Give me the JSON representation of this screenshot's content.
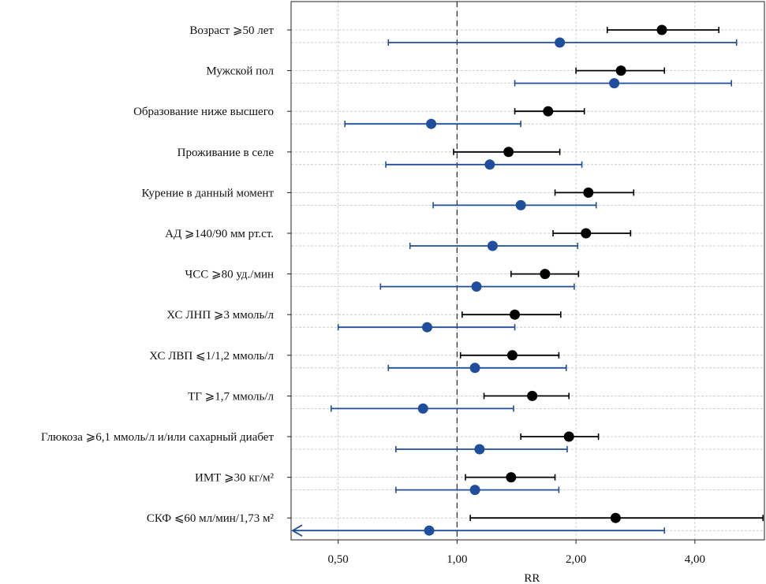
{
  "chart_data": {
    "type": "forest",
    "xlabel": "RR",
    "x_scale": "log",
    "xlim": [
      0.38,
      6.0
    ],
    "reference_line": 1.0,
    "x_ticks": [
      0.5,
      1.0,
      2.0,
      4.0
    ],
    "x_tick_labels": [
      "0,50",
      "1,00",
      "2,00",
      "4,00"
    ],
    "grid": true,
    "colors": {
      "series_black": "#000000",
      "series_blue": "#1f4e9c"
    },
    "rows": [
      {
        "label": "Возраст ⩾50 лет",
        "black": {
          "rr": 3.3,
          "lo": 2.4,
          "hi": 4.6
        },
        "blue": {
          "rr": 1.82,
          "lo": 0.67,
          "hi": 5.1
        }
      },
      {
        "label": "Мужской пол",
        "black": {
          "rr": 2.6,
          "lo": 2.0,
          "hi": 3.35
        },
        "blue": {
          "rr": 2.5,
          "lo": 1.4,
          "hi": 4.95
        }
      },
      {
        "label": "Образование ниже высшего",
        "black": {
          "rr": 1.7,
          "lo": 1.4,
          "hi": 2.1
        },
        "blue": {
          "rr": 0.86,
          "lo": 0.52,
          "hi": 1.45
        }
      },
      {
        "label": "Проживание в селе",
        "black": {
          "rr": 1.35,
          "lo": 0.98,
          "hi": 1.82
        },
        "blue": {
          "rr": 1.21,
          "lo": 0.66,
          "hi": 2.07
        }
      },
      {
        "label": "Курение в данный момент",
        "black": {
          "rr": 2.15,
          "lo": 1.77,
          "hi": 2.8
        },
        "blue": {
          "rr": 1.45,
          "lo": 0.87,
          "hi": 2.25
        }
      },
      {
        "label": "АД ⩾140/90 мм рт.ст.",
        "black": {
          "rr": 2.12,
          "lo": 1.75,
          "hi": 2.75
        },
        "blue": {
          "rr": 1.23,
          "lo": 0.76,
          "hi": 2.02
        }
      },
      {
        "label": "ЧСС ⩾80 уд./мин",
        "black": {
          "rr": 1.67,
          "lo": 1.37,
          "hi": 2.03
        },
        "blue": {
          "rr": 1.12,
          "lo": 0.64,
          "hi": 1.98
        }
      },
      {
        "label": "ХС ЛНП ⩾3 ммоль/л",
        "black": {
          "rr": 1.4,
          "lo": 1.03,
          "hi": 1.83
        },
        "blue": {
          "rr": 0.84,
          "lo": 0.5,
          "hi": 1.4
        }
      },
      {
        "label": "ХС ЛВП ⩽1/1,2 ммоль/л",
        "black": {
          "rr": 1.38,
          "lo": 1.02,
          "hi": 1.81
        },
        "blue": {
          "rr": 1.11,
          "lo": 0.67,
          "hi": 1.89
        }
      },
      {
        "label": "ТГ ⩾1,7 ммоль/л",
        "black": {
          "rr": 1.55,
          "lo": 1.17,
          "hi": 1.92
        },
        "blue": {
          "rr": 0.82,
          "lo": 0.48,
          "hi": 1.39
        }
      },
      {
        "label": "Глюкоза ⩾6,1 ммоль/л и/или сахарный диабет",
        "black": {
          "rr": 1.92,
          "lo": 1.45,
          "hi": 2.28
        },
        "blue": {
          "rr": 1.14,
          "lo": 0.7,
          "hi": 1.9
        }
      },
      {
        "label": "ИМТ ⩾30 кг/м²",
        "black": {
          "rr": 1.37,
          "lo": 1.05,
          "hi": 1.77
        },
        "blue": {
          "rr": 1.11,
          "lo": 0.7,
          "hi": 1.81
        }
      },
      {
        "label": "СКФ ⩽60 мл/мин/1,73 м²",
        "black": {
          "rr": 2.52,
          "lo": 1.08,
          "hi": 5.95
        },
        "blue": {
          "rr": 0.85,
          "lo": 0.38,
          "hi": 3.35,
          "lo_arrow": true
        }
      }
    ]
  }
}
